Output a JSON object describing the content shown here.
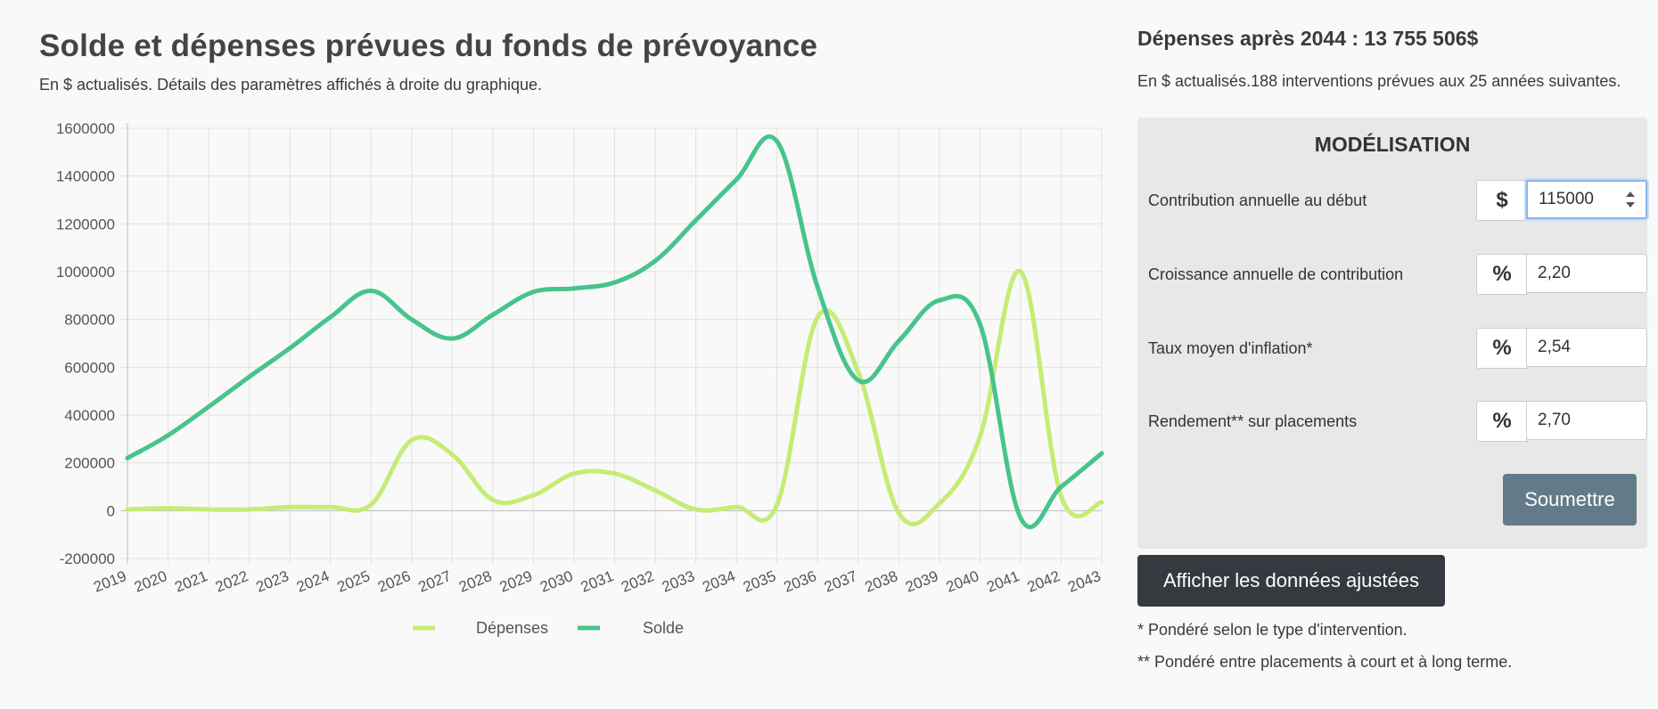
{
  "chart_section": {
    "title": "Solde et dépenses prévues du fonds de prévoyance",
    "subtitle": "En $ actualisés. Détails des paramètres affichés à droite du graphique."
  },
  "chart_data": {
    "type": "line",
    "title": "",
    "xlabel": "",
    "ylabel": "",
    "x": [
      "2019",
      "2020",
      "2021",
      "2022",
      "2023",
      "2024",
      "2025",
      "2026",
      "2027",
      "2028",
      "2029",
      "2030",
      "2031",
      "2032",
      "2033",
      "2034",
      "2035",
      "2036",
      "2037",
      "2038",
      "2039",
      "2040",
      "2041",
      "2042",
      "2043"
    ],
    "ylim": [
      -200000,
      1600000
    ],
    "yticks": [
      -200000,
      0,
      200000,
      400000,
      600000,
      800000,
      1000000,
      1200000,
      1400000,
      1600000
    ],
    "ytick_labels": [
      "-200000",
      "0",
      "200000",
      "400000",
      "600000",
      "800000",
      "1000000",
      "1200000",
      "1400000",
      "1600000"
    ],
    "grid": true,
    "legend_position": "bottom",
    "series": [
      {
        "name": "Dépenses",
        "color": "#c5ec74",
        "values": [
          5000,
          10000,
          5000,
          5000,
          15000,
          15000,
          25000,
          295000,
          235000,
          45000,
          65000,
          155000,
          155000,
          85000,
          5000,
          15000,
          25000,
          810000,
          580000,
          -10000,
          30000,
          310000,
          1000000,
          60000,
          35000
        ]
      },
      {
        "name": "Solde",
        "color": "#47c48b",
        "values": [
          220000,
          315000,
          435000,
          560000,
          680000,
          810000,
          920000,
          800000,
          720000,
          820000,
          915000,
          930000,
          955000,
          1045000,
          1215000,
          1385000,
          1545000,
          935000,
          545000,
          710000,
          880000,
          780000,
          -30000,
          100000,
          240000
        ]
      }
    ]
  },
  "summary": {
    "title": "Dépenses après 2044 : 13 755 506$",
    "subtitle": "En $ actualisés.188 interventions prévues aux 25 années suivantes."
  },
  "modeling": {
    "title": "MODÉLISATION",
    "fields": [
      {
        "label": "Contribution annuelle au début",
        "unit": "$",
        "value": "115000"
      },
      {
        "label": "Croissance annuelle de contribution",
        "unit": "%",
        "value": "2,20"
      },
      {
        "label": "Taux moyen d'inflation*",
        "unit": "%",
        "value": "2,54"
      },
      {
        "label": "Rendement** sur placements",
        "unit": "%",
        "value": "2,70"
      }
    ],
    "submit_label": "Soumettre"
  },
  "adjusted_button_label": "Afficher les données ajustées",
  "notes": [
    "* Pondéré selon le type d'intervention.",
    "** Pondéré entre placements à court et à long terme."
  ]
}
